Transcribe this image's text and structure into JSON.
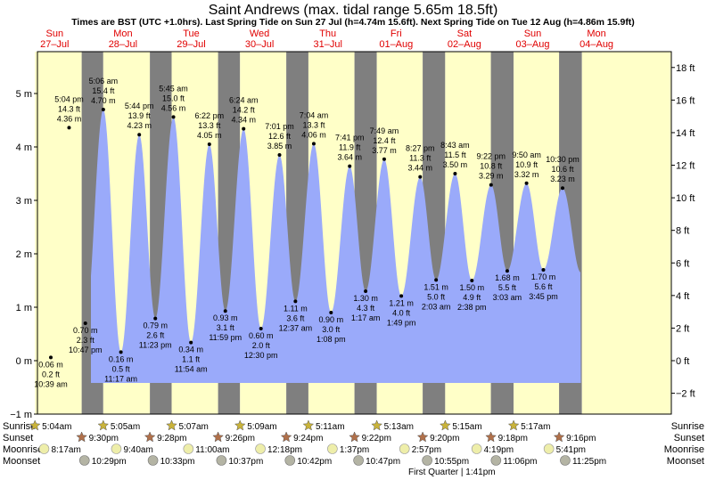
{
  "chart_data": {
    "type": "area",
    "title": "Saint Andrews (max. tidal range 5.65m 18.5ft)",
    "subtitle": "Times are BST (UTC +1.0hrs). Last Spring Tide on Sun 27 Jul (h=4.74m 15.6ft). Next Spring Tide on Tue 12 Aug (h=4.86m 15.9ft)",
    "ylim_m": [
      -1,
      5.8
    ],
    "yticks_m": [
      "5 m",
      "4 m",
      "3 m",
      "2 m",
      "1 m",
      "0 m",
      "−1 m"
    ],
    "yticks_ft": [
      "18 ft",
      "16 ft",
      "14 ft",
      "12 ft",
      "10 ft",
      "8 ft",
      "6 ft",
      "4 ft",
      "2 ft",
      "0 ft",
      "−2 ft"
    ],
    "days": [
      {
        "dow": "Sun",
        "date": "27–Jul"
      },
      {
        "dow": "Mon",
        "date": "28–Jul"
      },
      {
        "dow": "Tue",
        "date": "29–Jul"
      },
      {
        "dow": "Wed",
        "date": "30–Jul"
      },
      {
        "dow": "Thu",
        "date": "31–Jul"
      },
      {
        "dow": "Fri",
        "date": "01–Aug"
      },
      {
        "dow": "Sat",
        "date": "02–Aug"
      },
      {
        "dow": "Sun",
        "date": "03–Aug"
      },
      {
        "dow": "Mon",
        "date": "04–Aug"
      }
    ],
    "series": [
      {
        "name": "Tide height",
        "unit": "m",
        "color": "#9aaafa",
        "points": [
          {
            "day": 0,
            "time": "10:39 am",
            "h": 0.06,
            "ft": "0.2 ft",
            "m": "0.06 m",
            "type": "low"
          },
          {
            "day": 0,
            "time": "5:04 pm",
            "h": 4.36,
            "ft": "14.3 ft",
            "m": "4.36 m",
            "type": "high"
          },
          {
            "day": 0,
            "time": "10:47 pm",
            "h": 0.7,
            "ft": "2.3 ft",
            "m": "0.70 m",
            "type": "low"
          },
          {
            "day": 1,
            "time": "5:06 am",
            "h": 4.7,
            "ft": "15.4 ft",
            "m": "4.70 m",
            "type": "high"
          },
          {
            "day": 1,
            "time": "11:17 am",
            "h": 0.16,
            "ft": "0.5 ft",
            "m": "0.16 m",
            "type": "low"
          },
          {
            "day": 1,
            "time": "5:44 pm",
            "h": 4.23,
            "ft": "13.9 ft",
            "m": "4.23 m",
            "type": "high"
          },
          {
            "day": 1,
            "time": "11:23 pm",
            "h": 0.79,
            "ft": "2.6 ft",
            "m": "0.79 m",
            "type": "low"
          },
          {
            "day": 2,
            "time": "5:45 am",
            "h": 4.56,
            "ft": "15.0 ft",
            "m": "4.56 m",
            "type": "high"
          },
          {
            "day": 2,
            "time": "11:54 am",
            "h": 0.34,
            "ft": "1.1 ft",
            "m": "0.34 m",
            "type": "low"
          },
          {
            "day": 2,
            "time": "6:22 pm",
            "h": 4.05,
            "ft": "13.3 ft",
            "m": "4.05 m",
            "type": "high"
          },
          {
            "day": 2,
            "time": "11:59 pm",
            "h": 0.93,
            "ft": "3.1 ft",
            "m": "0.93 m",
            "type": "low"
          },
          {
            "day": 3,
            "time": "6:24 am",
            "h": 4.34,
            "ft": "14.2 ft",
            "m": "4.34 m",
            "type": "high"
          },
          {
            "day": 3,
            "time": "12:30 pm",
            "h": 0.6,
            "ft": "2.0 ft",
            "m": "0.60 m",
            "type": "low"
          },
          {
            "day": 3,
            "time": "7:01 pm",
            "h": 3.85,
            "ft": "12.6 ft",
            "m": "3.85 m",
            "type": "high"
          },
          {
            "day": 4,
            "time": "12:37 am",
            "h": 1.11,
            "ft": "3.6 ft",
            "m": "1.11 m",
            "type": "low"
          },
          {
            "day": 4,
            "time": "7:04 am",
            "h": 4.06,
            "ft": "13.3 ft",
            "m": "4.06 m",
            "type": "high"
          },
          {
            "day": 4,
            "time": "1:08 pm",
            "h": 0.9,
            "ft": "3.0 ft",
            "m": "0.90 m",
            "type": "low"
          },
          {
            "day": 4,
            "time": "7:41 pm",
            "h": 3.64,
            "ft": "11.9 ft",
            "m": "3.64 m",
            "type": "high"
          },
          {
            "day": 5,
            "time": "1:17 am",
            "h": 1.3,
            "ft": "4.3 ft",
            "m": "1.30 m",
            "type": "low"
          },
          {
            "day": 5,
            "time": "7:49 am",
            "h": 3.77,
            "ft": "12.4 ft",
            "m": "3.77 m",
            "type": "high"
          },
          {
            "day": 5,
            "time": "1:49 pm",
            "h": 1.21,
            "ft": "4.0 ft",
            "m": "1.21 m",
            "type": "low"
          },
          {
            "day": 5,
            "time": "8:27 pm",
            "h": 3.44,
            "ft": "11.3 ft",
            "m": "3.44 m",
            "type": "high"
          },
          {
            "day": 6,
            "time": "2:03 am",
            "h": 1.51,
            "ft": "5.0 ft",
            "m": "1.51 m",
            "type": "low"
          },
          {
            "day": 6,
            "time": "8:43 am",
            "h": 3.5,
            "ft": "11.5 ft",
            "m": "3.50 m",
            "type": "high"
          },
          {
            "day": 6,
            "time": "2:38 pm",
            "h": 1.5,
            "ft": "4.9 ft",
            "m": "1.50 m",
            "type": "low"
          },
          {
            "day": 6,
            "time": "9:22 pm",
            "h": 3.29,
            "ft": "10.8 ft",
            "m": "3.29 m",
            "type": "high"
          },
          {
            "day": 7,
            "time": "3:03 am",
            "h": 1.68,
            "ft": "5.5 ft",
            "m": "1.68 m",
            "type": "low"
          },
          {
            "day": 7,
            "time": "9:50 am",
            "h": 3.32,
            "ft": "10.9 ft",
            "m": "3.32 m",
            "type": "high"
          },
          {
            "day": 7,
            "time": "3:45 pm",
            "h": 1.7,
            "ft": "5.6 ft",
            "m": "1.70 m",
            "type": "low"
          },
          {
            "day": 7,
            "time": "10:30 pm",
            "h": 3.23,
            "ft": "10.6 ft",
            "m": "3.23 m",
            "type": "high"
          }
        ]
      }
    ],
    "astro": {
      "row_labels": [
        "Sunrise",
        "Sunset",
        "Moonrise",
        "Moonset"
      ],
      "sunrise": [
        "5:04am",
        "5:05am",
        "5:07am",
        "5:09am",
        "5:11am",
        "5:13am",
        "5:15am",
        "5:17am"
      ],
      "sunset": [
        "9:30pm",
        "9:28pm",
        "9:26pm",
        "9:24pm",
        "9:22pm",
        "9:20pm",
        "9:18pm",
        "9:16pm"
      ],
      "moonrise": [
        "8:17am",
        "9:40am",
        "11:00am",
        "12:18pm",
        "1:37pm",
        "2:57pm",
        "4:19pm",
        "5:41pm"
      ],
      "moonset": [
        "10:29pm",
        "10:33pm",
        "10:37pm",
        "10:42pm",
        "10:47pm",
        "10:55pm",
        "11:06pm",
        "11:25pm"
      ],
      "moon_phase": "First Quarter | 1:41pm"
    },
    "colors": {
      "water": "#9aaafa",
      "day_band": "#ffffc8",
      "night_band": "#7f7f7f",
      "label_red": "#e00000",
      "sun": "#c9b33a",
      "sunset": "#b0704a",
      "moon": "#eeeeaa",
      "moonset": "#b4b4a4"
    }
  }
}
